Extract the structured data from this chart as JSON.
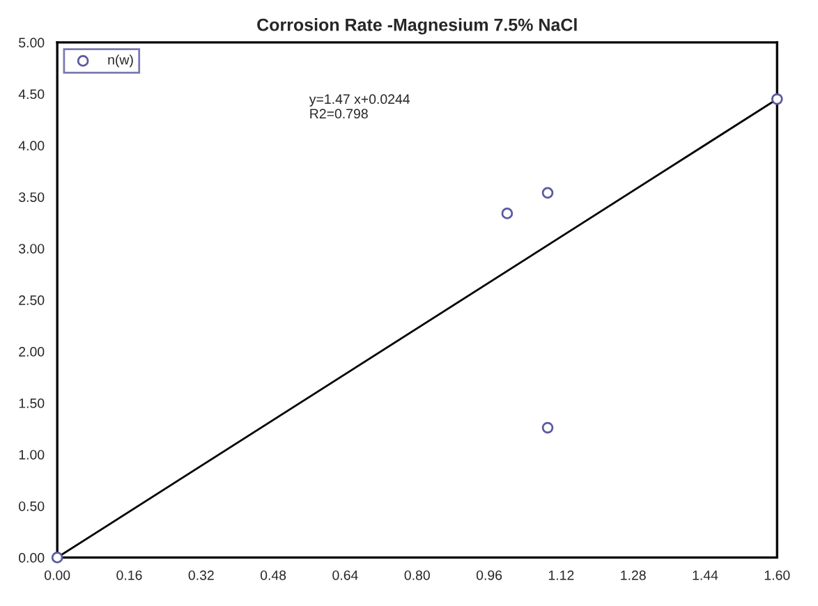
{
  "chart_data": {
    "type": "scatter",
    "title": "Corrosion Rate -Magnesium 7.5% NaCl",
    "series": [
      {
        "name": "n(w)",
        "color": "#5a5aa0",
        "marker": "circle",
        "x": [
          0,
          1.0,
          1.09,
          1.09,
          1.6
        ],
        "values": [
          0,
          3.34,
          3.54,
          1.26,
          4.45
        ]
      },
      {
        "type": "line",
        "color": "#000000",
        "marker": "none",
        "x": [
          0,
          1.6
        ],
        "values": [
          0,
          4.45
        ]
      }
    ],
    "annotations": [
      "y=1.47 x+0.0244",
      "R2=0.798"
    ],
    "xlim": [
      0,
      1.6
    ],
    "ylim": [
      0,
      5
    ],
    "xticks": [
      {
        "value": 0,
        "label": "0.00"
      },
      0.16,
      0.32,
      0.48,
      0.64,
      {
        "value": 0.8,
        "label": "0.80"
      },
      0.96,
      1.12,
      1.28,
      1.44,
      {
        "value": 1.6,
        "label": "1.60"
      }
    ],
    "yticks": [
      {
        "value": 0,
        "label": "0.00"
      },
      {
        "value": 0.5,
        "label": "0.50"
      },
      {
        "value": 1,
        "label": "1.00"
      },
      {
        "value": 1.5,
        "label": "1.50"
      },
      {
        "value": 2,
        "label": "2.00"
      },
      {
        "value": 2.5,
        "label": "2.50"
      },
      {
        "value": 3,
        "label": "3.00"
      },
      {
        "value": 3.5,
        "label": "3.50"
      },
      {
        "value": 4,
        "label": "4.00"
      },
      {
        "value": 4.5,
        "label": "4.50"
      },
      {
        "value": 5,
        "label": "5.00"
      }
    ],
    "legend": "top left",
    "grid": false
  }
}
